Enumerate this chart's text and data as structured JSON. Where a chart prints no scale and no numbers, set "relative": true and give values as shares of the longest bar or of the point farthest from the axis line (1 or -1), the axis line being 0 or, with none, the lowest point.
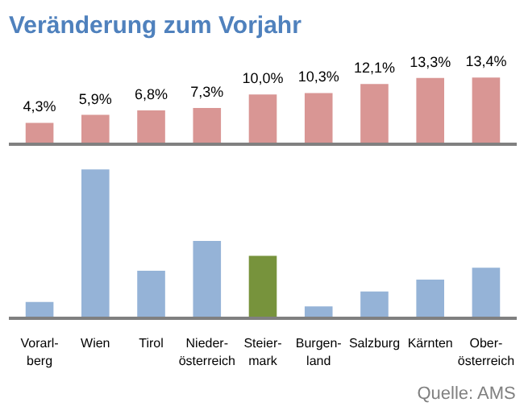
{
  "chart_data": [
    {
      "type": "bar",
      "title": "Veränderung zum Vorjahr",
      "categories": [
        null,
        null,
        null,
        null,
        null,
        null,
        null,
        null,
        null
      ],
      "values": [
        4.3,
        5.9,
        6.8,
        7.3,
        10.0,
        10.3,
        12.1,
        13.3,
        13.4
      ],
      "value_labels": [
        "4,3%",
        "5,9%",
        "6,8%",
        "7,3%",
        "10,0%",
        "10,3%",
        "12,1%",
        "13,3%",
        "13,4%"
      ],
      "color": "#d99694"
    },
    {
      "type": "bar",
      "relative": true,
      "categories": [
        "Vorarl-\nberg",
        "Wien",
        "Tirol",
        "Nieder-\nösterreich",
        "Steier-\nmark",
        "Burgen-\nland",
        "Salzburg",
        "Kärnten",
        "Ober-\nösterreich"
      ],
      "values": [
        0.11,
        1,
        0.32,
        0.52,
        0.42,
        0.08,
        0.18,
        0.26,
        0.34
      ],
      "colors": [
        "#95b3d7",
        "#95b3d7",
        "#95b3d7",
        "#95b3d7",
        "#77933c",
        "#95b3d7",
        "#95b3d7",
        "#95b3d7",
        "#95b3d7"
      ],
      "annotations": [
        "Quelle: AMS"
      ]
    }
  ]
}
